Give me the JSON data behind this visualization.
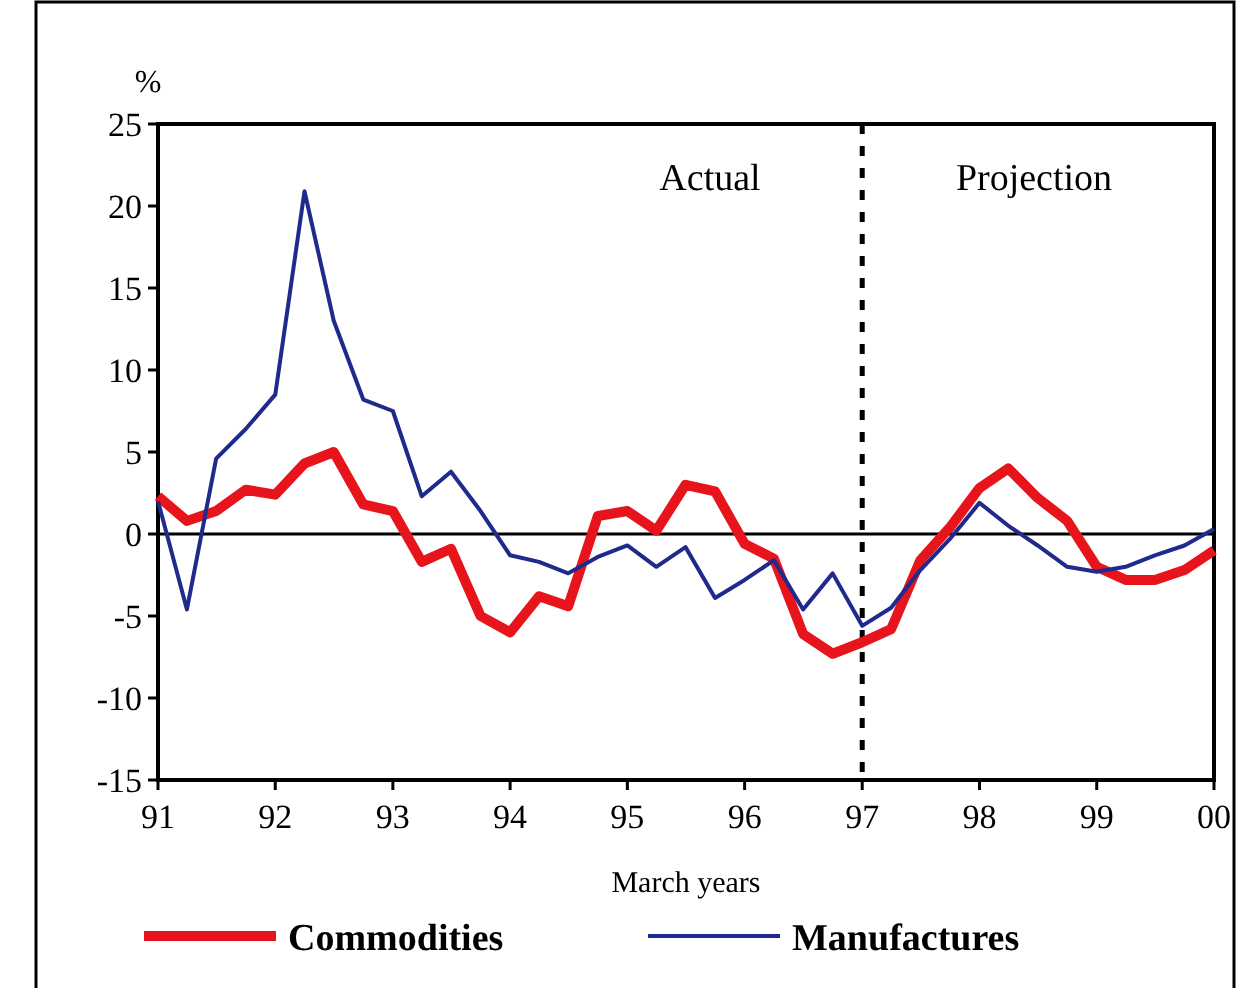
{
  "chart_data": {
    "type": "line",
    "xlabel": "March years",
    "ylabel": "%",
    "x": [
      "1991-01",
      "1991-04",
      "1991-07",
      "1991-10",
      "1992-01",
      "1992-04",
      "1992-07",
      "1992-10",
      "1993-01",
      "1993-04",
      "1993-07",
      "1993-10",
      "1994-01",
      "1994-04",
      "1994-07",
      "1994-10",
      "1995-01",
      "1995-04",
      "1995-07",
      "1995-10",
      "1996-01",
      "1996-04",
      "1996-07",
      "1996-10",
      "1997-01",
      "1997-04",
      "1997-07",
      "1997-10",
      "1998-01",
      "1998-04",
      "1998-07",
      "1998-10",
      "1999-01",
      "1999-04",
      "1999-07",
      "1999-10",
      "2000-01"
    ],
    "series": [
      {
        "name": "Commodities",
        "color": "#e8141c",
        "values": [
          2.3,
          0.8,
          1.4,
          2.7,
          2.4,
          4.3,
          5.0,
          1.8,
          1.4,
          -1.7,
          -0.9,
          -5.0,
          -6.0,
          -3.8,
          -4.4,
          1.1,
          1.4,
          0.2,
          3.0,
          2.6,
          -0.6,
          -1.5,
          -6.1,
          -7.3,
          -6.6,
          -5.8,
          -1.6,
          0.4,
          2.8,
          4.0,
          2.2,
          0.8,
          -2.0,
          -2.8,
          -2.8,
          -2.2,
          -1.0
        ]
      },
      {
        "name": "Manufactures",
        "color": "#1f2a8c",
        "values": [
          2.0,
          -4.6,
          4.6,
          6.4,
          8.5,
          20.9,
          13.0,
          8.2,
          7.5,
          2.3,
          3.8,
          1.4,
          -1.3,
          -1.7,
          -2.4,
          -1.4,
          -0.7,
          -2.0,
          -0.8,
          -3.9,
          -2.8,
          -1.6,
          -4.6,
          -2.4,
          -5.6,
          -4.5,
          -2.2,
          -0.3,
          1.9,
          0.5,
          -0.7,
          -2.0,
          -2.3,
          -2.0,
          -1.3,
          -0.7,
          0.3
        ]
      }
    ],
    "xlim": [
      "1991",
      "2000"
    ],
    "xticks": [
      {
        "value": "1991",
        "label": "91"
      },
      {
        "value": "1992",
        "label": "92"
      },
      {
        "value": "1993",
        "label": "93"
      },
      {
        "value": "1994",
        "label": "94"
      },
      {
        "value": "1995",
        "label": "95"
      },
      {
        "value": "1996",
        "label": "96"
      },
      {
        "value": "1997",
        "label": "97"
      },
      {
        "value": "1998",
        "label": "98"
      },
      {
        "value": "1999",
        "label": "99"
      },
      {
        "value": "2000",
        "label": "00"
      }
    ],
    "ylim": [
      -15,
      25
    ],
    "yticks": [
      -15,
      -10,
      -5,
      0,
      5,
      10,
      15,
      20,
      25
    ],
    "ref_lines": [
      {
        "axis": "x",
        "value": "1997",
        "line_style": "dashed",
        "color": "#000000"
      },
      {
        "axis": "y",
        "value": 0,
        "line_style": "solid",
        "color": "#000000"
      }
    ],
    "annotations": [
      "Actual",
      "Projection"
    ],
    "legend": "bottom",
    "grid": false,
    "marker": "none",
    "line_style": "solid"
  }
}
